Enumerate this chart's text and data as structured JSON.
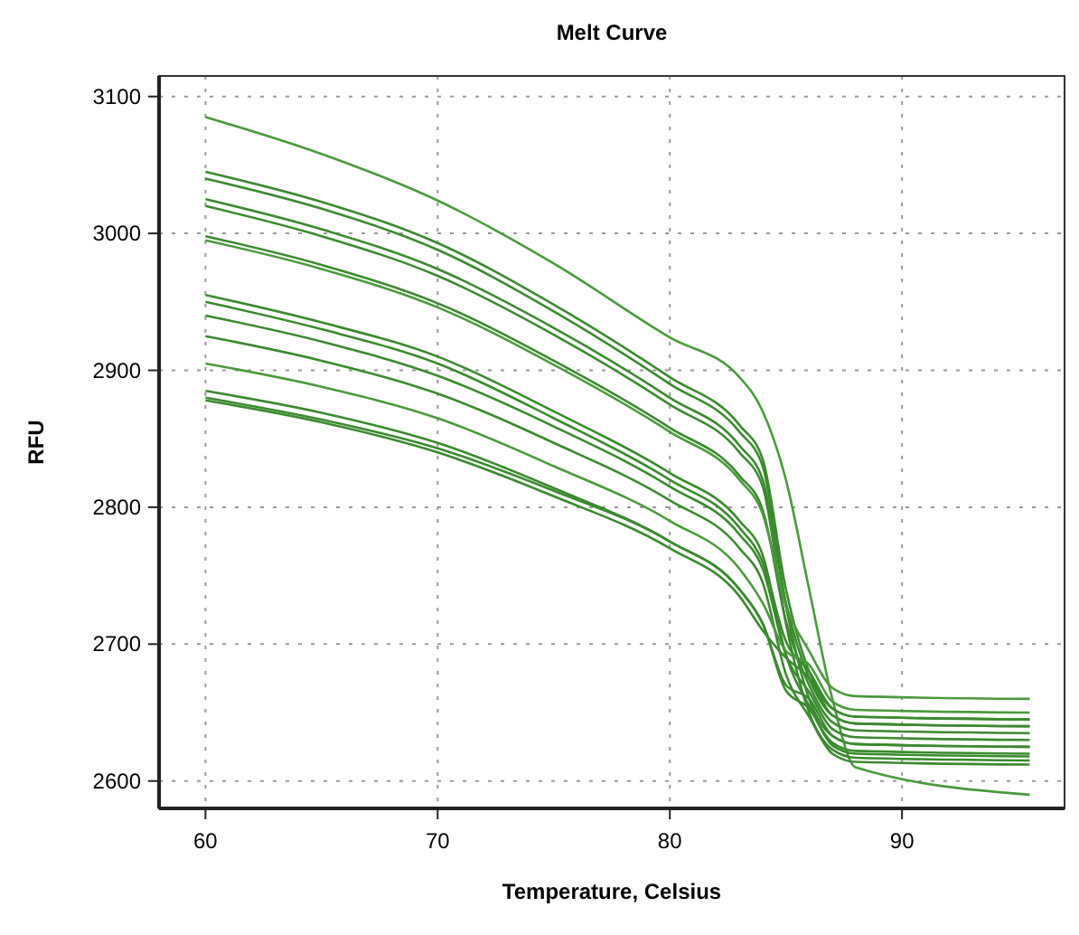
{
  "chart_data": {
    "type": "line",
    "title": "Melt Curve",
    "xlabel": "Temperature, Celsius",
    "ylabel": "RFU",
    "xlim": [
      58,
      97
    ],
    "ylim": [
      2580,
      3115
    ],
    "xticks": [
      60,
      70,
      80,
      90
    ],
    "yticks": [
      2600,
      2700,
      2800,
      2900,
      3000,
      3100
    ],
    "grid": true,
    "line_style": "solid",
    "marker": "none",
    "x": [
      60,
      65,
      70,
      75,
      80,
      83,
      84,
      85,
      86,
      87,
      88,
      95.5
    ],
    "series": [
      {
        "color": "#4a9a3c",
        "values": [
          3085,
          3058,
          3024,
          2978,
          2924,
          2895,
          2870,
          2820,
          2740,
          2660,
          2610,
          2590
        ]
      },
      {
        "color": "#3a8a2e",
        "values": [
          3045,
          3023,
          2993,
          2948,
          2895,
          2860,
          2835,
          2740,
          2680,
          2653,
          2647,
          2645
        ]
      },
      {
        "color": "#3a8a2e",
        "values": [
          3040,
          3018,
          2988,
          2943,
          2890,
          2855,
          2830,
          2728,
          2660,
          2633,
          2627,
          2625
        ]
      },
      {
        "color": "#3a8a2e",
        "values": [
          3025,
          3003,
          2974,
          2931,
          2880,
          2845,
          2820,
          2730,
          2675,
          2648,
          2642,
          2640
        ]
      },
      {
        "color": "#3a8a2e",
        "values": [
          3020,
          2998,
          2969,
          2926,
          2875,
          2840,
          2815,
          2715,
          2650,
          2623,
          2617,
          2615
        ]
      },
      {
        "color": "#3a8a2e",
        "values": [
          2998,
          2977,
          2949,
          2907,
          2858,
          2823,
          2798,
          2717,
          2670,
          2643,
          2637,
          2635
        ]
      },
      {
        "color": "#4a9a3c",
        "values": [
          2995,
          2974,
          2946,
          2904,
          2855,
          2820,
          2795,
          2728,
          2695,
          2668,
          2662,
          2660
        ]
      },
      {
        "color": "#3a8a2e",
        "values": [
          2955,
          2935,
          2910,
          2870,
          2825,
          2790,
          2765,
          2692,
          2655,
          2628,
          2622,
          2620
        ]
      },
      {
        "color": "#3a8a2e",
        "values": [
          2950,
          2930,
          2905,
          2865,
          2820,
          2785,
          2760,
          2702,
          2680,
          2653,
          2647,
          2645
        ]
      },
      {
        "color": "#3a8a2e",
        "values": [
          2940,
          2921,
          2896,
          2859,
          2815,
          2780,
          2755,
          2692,
          2665,
          2638,
          2632,
          2630
        ]
      },
      {
        "color": "#3a8a2e",
        "values": [
          2925,
          2907,
          2883,
          2847,
          2805,
          2770,
          2745,
          2678,
          2647,
          2620,
          2614,
          2612
        ]
      },
      {
        "color": "#4a9a3c",
        "values": [
          2905,
          2888,
          2865,
          2830,
          2790,
          2755,
          2730,
          2695,
          2685,
          2658,
          2652,
          2650
        ]
      },
      {
        "color": "#3a8a2e",
        "values": [
          2885,
          2869,
          2847,
          2814,
          2775,
          2740,
          2715,
          2666,
          2653,
          2626,
          2620,
          2618
        ]
      },
      {
        "color": "#3a8a2e",
        "values": [
          2880,
          2864,
          2843,
          2812,
          2775,
          2740,
          2715,
          2670,
          2660,
          2633,
          2627,
          2625
        ]
      },
      {
        "color": "#3a8a2e",
        "values": [
          2878,
          2862,
          2840,
          2808,
          2770,
          2735,
          2710,
          2690,
          2675,
          2648,
          2642,
          2640
        ]
      }
    ]
  }
}
